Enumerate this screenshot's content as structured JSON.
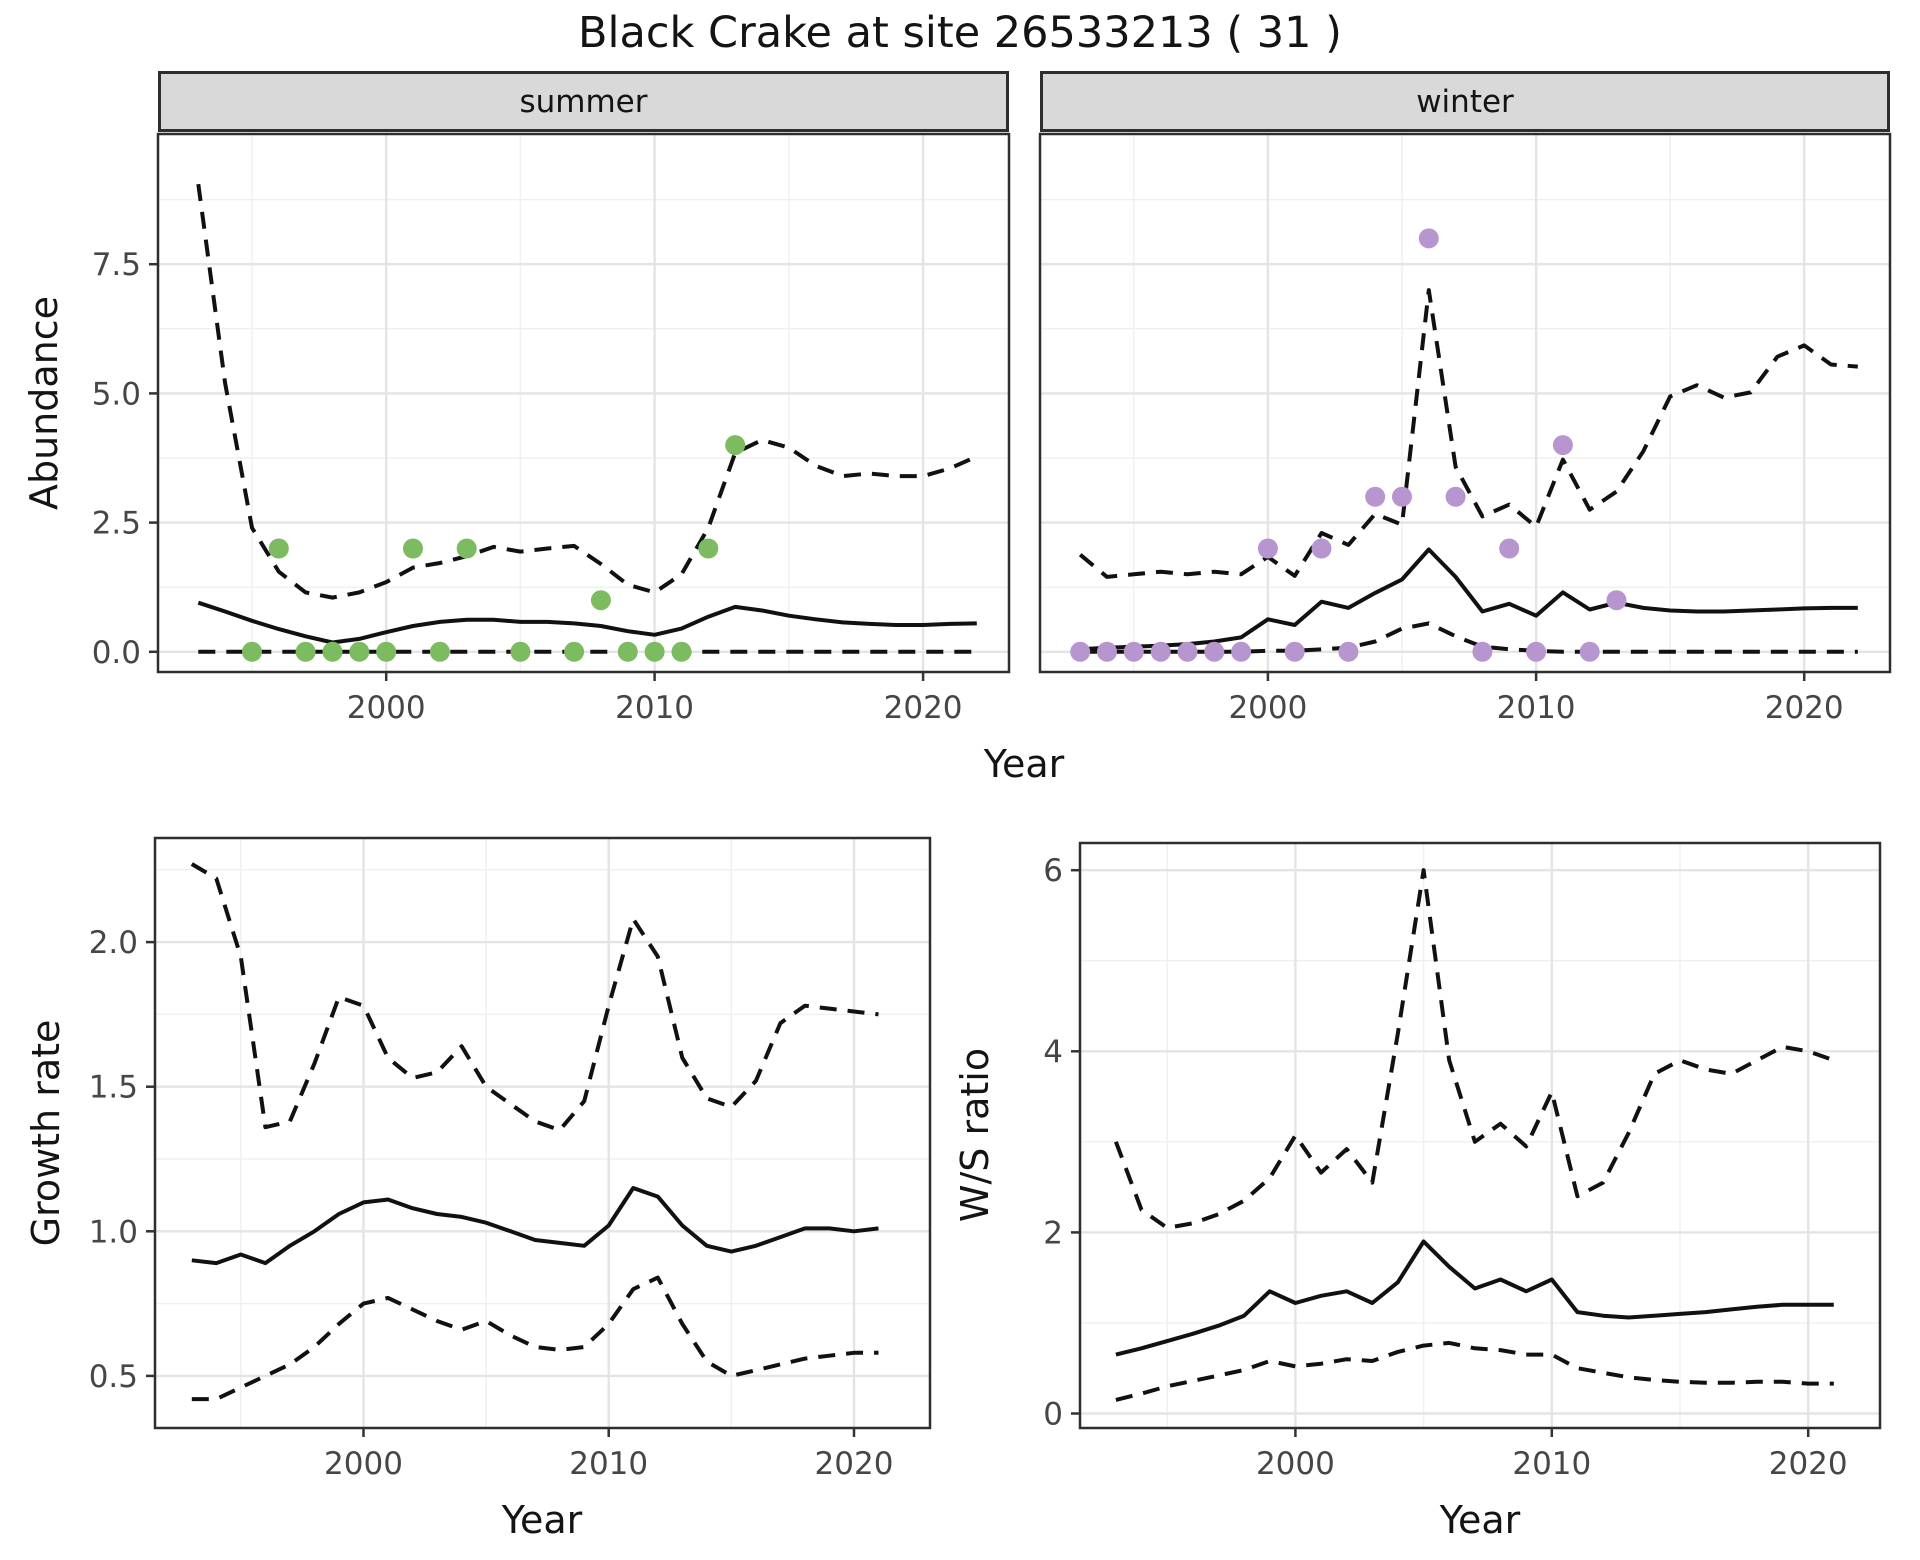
{
  "colors": {
    "line": "#111111",
    "point_summer": "#7CBB5F",
    "point_winter": "#B795CE",
    "strip_bg": "#D9D9D9",
    "grid_major": "#E4E4E4",
    "grid_minor": "#F0F0F0",
    "border": "#2E2E2E",
    "tick_text": "#464646"
  },
  "chart_data": {
    "type": "line",
    "title": "Black Crake at site 26533213 ( 31 )",
    "legend": "none",
    "grid": "on",
    "facets": [
      {
        "label": "summer",
        "ylabel": "Abundance",
        "xlabel": "Year",
        "x_axis": {
          "tick_labels": [
            "2000",
            "2010",
            "2020"
          ],
          "tick_values": [
            2000,
            2010,
            2020
          ],
          "minor": [
            1995,
            2005,
            2015
          ],
          "range": [
            1991.5,
            2023.2
          ]
        },
        "y_axis": {
          "tick_labels": [
            "0.0",
            "2.5",
            "5.0",
            "7.5"
          ],
          "tick_values": [
            0,
            2.5,
            5,
            7.5
          ],
          "minor": [
            1.25,
            3.75,
            6.25,
            8.75
          ],
          "range": [
            -0.39,
            10.02
          ]
        },
        "years": [
          1993,
          1994,
          1995,
          1996,
          1997,
          1998,
          1999,
          2000,
          2001,
          2002,
          2003,
          2004,
          2005,
          2006,
          2007,
          2008,
          2009,
          2010,
          2011,
          2012,
          2013,
          2014,
          2015,
          2016,
          2017,
          2018,
          2019,
          2020,
          2021,
          2022
        ],
        "series": [
          {
            "name": "upper_ci",
            "style": "dashed",
            "values": [
              9.05,
              5.2,
              2.4,
              1.55,
              1.15,
              1.05,
              1.15,
              1.35,
              1.63,
              1.72,
              1.85,
              2.03,
              1.94,
              2.0,
              2.05,
              1.7,
              1.3,
              1.15,
              1.5,
              2.4,
              3.85,
              4.1,
              3.95,
              3.6,
              3.4,
              3.45,
              3.4,
              3.4,
              3.55,
              3.78
            ]
          },
          {
            "name": "mean",
            "style": "solid",
            "values": [
              0.95,
              0.78,
              0.6,
              0.44,
              0.3,
              0.18,
              0.25,
              0.38,
              0.5,
              0.58,
              0.62,
              0.62,
              0.58,
              0.58,
              0.55,
              0.5,
              0.4,
              0.33,
              0.45,
              0.68,
              0.87,
              0.8,
              0.7,
              0.63,
              0.57,
              0.54,
              0.52,
              0.52,
              0.54,
              0.55
            ]
          },
          {
            "name": "lower_ci",
            "style": "dashed",
            "values": [
              0,
              0,
              0,
              0,
              0,
              0,
              0,
              0,
              0,
              0,
              0,
              0,
              0,
              0,
              0,
              0,
              0,
              0,
              0,
              0,
              0,
              0,
              0,
              0,
              0,
              0,
              0,
              0,
              0,
              0
            ]
          }
        ],
        "points": {
          "color": "#7CBB5F",
          "years": [
            1995,
            1996,
            1997,
            1998,
            1999,
            2000,
            2001,
            2002,
            2003,
            2005,
            2007,
            2008,
            2009,
            2010,
            2011,
            2012,
            2013
          ],
          "values": [
            0,
            2,
            0,
            0,
            0,
            0,
            2,
            0,
            2,
            0,
            0,
            1,
            0,
            0,
            0,
            2,
            4
          ]
        }
      },
      {
        "label": "winter",
        "ylabel": "Abundance",
        "xlabel": "Year",
        "x_axis": {
          "tick_labels": [
            "2000",
            "2010",
            "2020"
          ],
          "tick_values": [
            2000,
            2010,
            2020
          ],
          "minor": [
            1995,
            2005,
            2015
          ],
          "range": [
            1991.5,
            2023.2
          ]
        },
        "y_axis": {
          "tick_labels": [
            "0.0",
            "2.5",
            "5.0",
            "7.5"
          ],
          "tick_values": [
            0,
            2.5,
            5,
            7.5
          ],
          "minor": [
            1.25,
            3.75,
            6.25,
            8.75
          ],
          "range": [
            -0.39,
            10.02
          ]
        },
        "years": [
          1993,
          1994,
          1995,
          1996,
          1997,
          1998,
          1999,
          2000,
          2001,
          2002,
          2003,
          2004,
          2005,
          2006,
          2007,
          2008,
          2009,
          2010,
          2011,
          2012,
          2013,
          2014,
          2015,
          2016,
          2017,
          2018,
          2019,
          2020,
          2021,
          2022
        ],
        "series": [
          {
            "name": "upper_ci",
            "style": "dashed",
            "values": [
              1.88,
              1.45,
              1.5,
              1.55,
              1.5,
              1.55,
              1.5,
              1.84,
              1.47,
              2.3,
              2.07,
              2.67,
              2.46,
              7.0,
              3.58,
              2.62,
              2.85,
              2.42,
              3.72,
              2.75,
              3.1,
              3.88,
              4.94,
              5.16,
              4.92,
              5.02,
              5.71,
              5.93,
              5.56,
              5.52
            ]
          },
          {
            "name": "mean",
            "style": "solid",
            "values": [
              0.05,
              0.08,
              0.1,
              0.12,
              0.15,
              0.2,
              0.28,
              0.63,
              0.52,
              0.97,
              0.85,
              1.14,
              1.4,
              1.98,
              1.45,
              0.78,
              0.93,
              0.7,
              1.15,
              0.82,
              0.95,
              0.85,
              0.8,
              0.78,
              0.78,
              0.8,
              0.82,
              0.84,
              0.85,
              0.85
            ]
          },
          {
            "name": "lower_ci",
            "style": "dashed",
            "values": [
              0,
              0,
              0,
              0,
              0,
              0,
              0,
              0.02,
              0.02,
              0.05,
              0.08,
              0.2,
              0.45,
              0.55,
              0.3,
              0.1,
              0.05,
              0.02,
              0,
              0,
              0,
              0,
              0,
              0,
              0,
              0,
              0,
              0,
              0,
              0
            ]
          }
        ],
        "points": {
          "color": "#B795CE",
          "years": [
            1993,
            1994,
            1995,
            1996,
            1997,
            1998,
            1999,
            2000,
            2001,
            2002,
            2003,
            2004,
            2005,
            2006,
            2007,
            2008,
            2009,
            2010,
            2011,
            2012,
            2013
          ],
          "values": [
            0,
            0,
            0,
            0,
            0,
            0,
            0,
            2,
            0,
            2,
            0,
            3,
            3,
            8,
            3,
            0,
            2,
            0,
            4,
            0,
            1
          ]
        }
      },
      {
        "label": "growth_rate",
        "ylabel": "Growth rate",
        "xlabel": "Year",
        "x_axis": {
          "tick_labels": [
            "2000",
            "2010",
            "2020"
          ],
          "tick_values": [
            2000,
            2010,
            2020
          ],
          "minor": [
            1995,
            2005,
            2015
          ],
          "range": [
            1991.5,
            2023.1
          ]
        },
        "y_axis": {
          "tick_labels": [
            "0.5",
            "1.0",
            "1.5",
            "2.0"
          ],
          "tick_values": [
            0.5,
            1.0,
            1.5,
            2.0
          ],
          "minor": [
            0.75,
            1.25,
            1.75,
            2.25
          ],
          "range": [
            0.32,
            2.36
          ]
        },
        "years": [
          1993,
          1994,
          1995,
          1996,
          1997,
          1998,
          1999,
          2000,
          2001,
          2002,
          2003,
          2004,
          2005,
          2006,
          2007,
          2008,
          2009,
          2010,
          2011,
          2012,
          2013,
          2014,
          2015,
          2016,
          2017,
          2018,
          2019,
          2020,
          2021
        ],
        "series": [
          {
            "name": "upper_ci",
            "style": "dashed",
            "values": [
              2.27,
              2.22,
              1.95,
              1.36,
              1.38,
              1.58,
              1.81,
              1.78,
              1.6,
              1.53,
              1.55,
              1.64,
              1.5,
              1.44,
              1.38,
              1.35,
              1.45,
              1.78,
              2.08,
              1.95,
              1.6,
              1.46,
              1.43,
              1.52,
              1.72,
              1.78,
              1.77,
              1.76,
              1.75
            ]
          },
          {
            "name": "mean",
            "style": "solid",
            "values": [
              0.9,
              0.89,
              0.92,
              0.89,
              0.95,
              1.0,
              1.06,
              1.1,
              1.11,
              1.08,
              1.06,
              1.05,
              1.03,
              1.0,
              0.97,
              0.96,
              0.95,
              1.02,
              1.15,
              1.12,
              1.02,
              0.95,
              0.93,
              0.95,
              0.98,
              1.01,
              1.01,
              1.0,
              1.01
            ]
          },
          {
            "name": "lower_ci",
            "style": "dashed",
            "values": [
              0.42,
              0.42,
              0.46,
              0.5,
              0.54,
              0.6,
              0.68,
              0.75,
              0.77,
              0.73,
              0.69,
              0.66,
              0.69,
              0.64,
              0.6,
              0.59,
              0.6,
              0.68,
              0.8,
              0.84,
              0.68,
              0.55,
              0.5,
              0.52,
              0.54,
              0.56,
              0.57,
              0.58,
              0.58
            ]
          }
        ],
        "points": null
      },
      {
        "label": "ws_ratio",
        "ylabel": "W/S ratio",
        "xlabel": "Year",
        "x_axis": {
          "tick_labels": [
            "2000",
            "2010",
            "2020"
          ],
          "tick_values": [
            2000,
            2010,
            2020
          ],
          "minor": [
            1995,
            2005,
            2015
          ],
          "range": [
            1991.6,
            2022.8
          ]
        },
        "y_axis": {
          "tick_labels": [
            "0",
            "2",
            "4",
            "6"
          ],
          "tick_values": [
            0,
            2,
            4,
            6
          ],
          "minor": [
            1,
            3,
            5
          ],
          "range": [
            -0.16,
            6.3
          ]
        },
        "years": [
          1993,
          1994,
          1995,
          1996,
          1997,
          1998,
          1999,
          2000,
          2001,
          2002,
          2003,
          2004,
          2005,
          2006,
          2007,
          2008,
          2009,
          2010,
          2011,
          2012,
          2013,
          2014,
          2015,
          2016,
          2017,
          2018,
          2019,
          2020,
          2021
        ],
        "series": [
          {
            "name": "upper_ci",
            "style": "dashed",
            "values": [
              3.0,
              2.25,
              2.05,
              2.1,
              2.2,
              2.35,
              2.6,
              3.07,
              2.66,
              2.92,
              2.55,
              4.2,
              6.0,
              3.9,
              3.0,
              3.2,
              2.95,
              3.55,
              2.4,
              2.55,
              3.1,
              3.75,
              3.9,
              3.8,
              3.75,
              3.9,
              4.05,
              4.0,
              3.9
            ]
          },
          {
            "name": "mean",
            "style": "solid",
            "values": [
              0.65,
              0.72,
              0.8,
              0.88,
              0.97,
              1.08,
              1.35,
              1.22,
              1.3,
              1.35,
              1.22,
              1.45,
              1.9,
              1.62,
              1.38,
              1.48,
              1.35,
              1.48,
              1.12,
              1.08,
              1.06,
              1.08,
              1.1,
              1.12,
              1.15,
              1.18,
              1.2,
              1.2,
              1.2
            ]
          },
          {
            "name": "lower_ci",
            "style": "dashed",
            "values": [
              0.15,
              0.22,
              0.3,
              0.36,
              0.42,
              0.48,
              0.58,
              0.52,
              0.55,
              0.6,
              0.58,
              0.68,
              0.75,
              0.78,
              0.72,
              0.7,
              0.65,
              0.65,
              0.5,
              0.45,
              0.4,
              0.37,
              0.35,
              0.34,
              0.34,
              0.35,
              0.35,
              0.33,
              0.33
            ]
          }
        ],
        "points": null
      }
    ]
  }
}
